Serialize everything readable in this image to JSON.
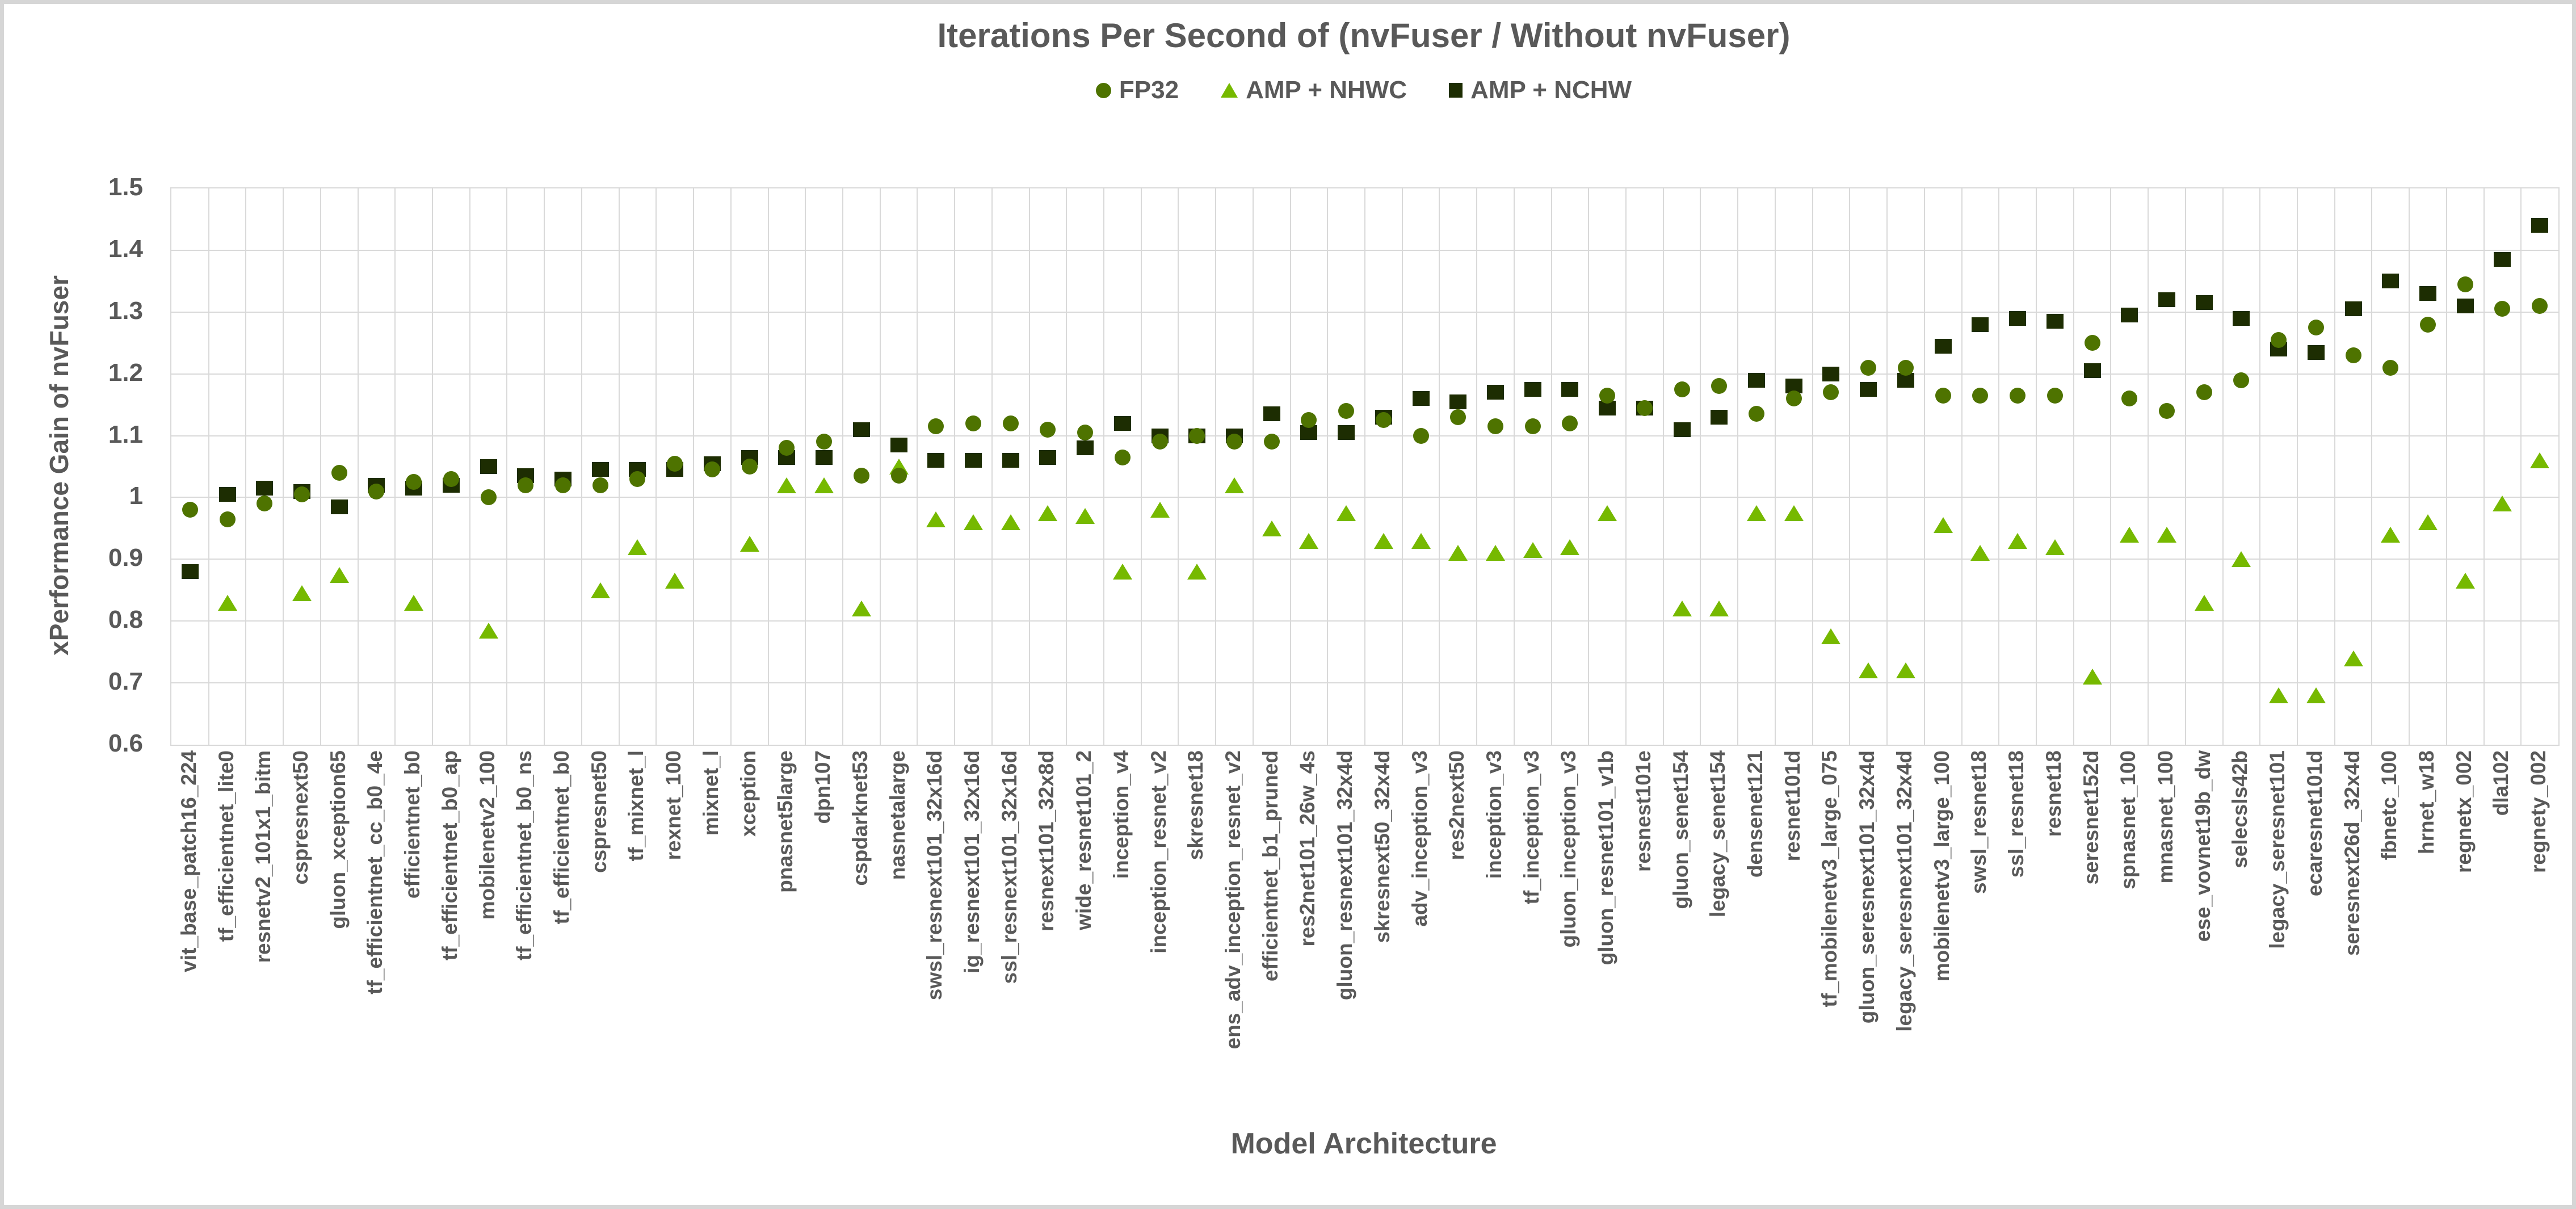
{
  "chart_data": {
    "type": "scatter",
    "title": "Iterations Per Second of (nvFuser / Without nvFuser)",
    "xlabel": "Model Architecture",
    "ylabel": "xPerformance Gain of nvFuser",
    "ylim": [
      0.6,
      1.5
    ],
    "ytick_labels": [
      "1.5",
      "1.4",
      "1.3",
      "1.2",
      "1.1",
      "1",
      "0.9",
      "0.8",
      "0.7",
      "0.6"
    ],
    "grid": true,
    "legend_position": "top-center",
    "grid_color": "#d9d9d9",
    "text_color": "#595959",
    "categories": [
      "vit_base_patch16_224",
      "tf_efficientnet_lite0",
      "resnetv2_101x1_bitm",
      "cspresnext50",
      "gluon_xception65",
      "tf_efficientnet_cc_b0_4e",
      "efficientnet_b0",
      "tf_efficientnet_b0_ap",
      "mobilenetv2_100",
      "tf_efficientnet_b0_ns",
      "tf_efficientnet_b0",
      "cspresnet50",
      "tf_mixnet_l",
      "rexnet_100",
      "mixnet_l",
      "xception",
      "pnasnet5large",
      "dpn107",
      "cspdarknet53",
      "nasnetalarge",
      "swsl_resnext101_32x16d",
      "ig_resnext101_32x16d",
      "ssl_resnext101_32x16d",
      "resnext101_32x8d",
      "wide_resnet101_2",
      "inception_v4",
      "inception_resnet_v2",
      "skresnet18",
      "ens_adv_inception_resnet_v2",
      "efficientnet_b1_pruned",
      "res2net101_26w_4s",
      "gluon_resnext101_32x4d",
      "skresnext50_32x4d",
      "adv_inception_v3",
      "res2next50",
      "inception_v3",
      "tf_inception_v3",
      "gluon_inception_v3",
      "gluon_resnet101_v1b",
      "resnest101e",
      "gluon_senet154",
      "legacy_senet154",
      "densenet121",
      "resnet101d",
      "tf_mobilenetv3_large_075",
      "gluon_seresnext101_32x4d",
      "legacy_seresnext101_32x4d",
      "mobilenetv3_large_100",
      "swsl_resnet18",
      "ssl_resnet18",
      "resnet18",
      "seresnet152d",
      "spnasnet_100",
      "mnasnet_100",
      "ese_vovnet19b_dw",
      "selecsls42b",
      "legacy_seresnet101",
      "ecaresnet101d",
      "seresnext26d_32x4d",
      "fbnetc_100",
      "hrnet_w18",
      "regnetx_002",
      "dla102",
      "regnety_002"
    ],
    "series": [
      {
        "name": "FP32",
        "marker": "circle",
        "color": "#4e7300",
        "values": [
          0.98,
          0.965,
          0.99,
          1.005,
          1.04,
          1.01,
          1.025,
          1.03,
          1.0,
          1.02,
          1.02,
          1.02,
          1.03,
          1.055,
          1.045,
          1.05,
          1.08,
          1.09,
          1.035,
          1.035,
          1.115,
          1.12,
          1.12,
          1.11,
          1.105,
          1.065,
          1.09,
          1.1,
          1.09,
          1.09,
          1.125,
          1.14,
          1.125,
          1.1,
          1.13,
          1.115,
          1.115,
          1.12,
          1.165,
          1.145,
          1.175,
          1.18,
          1.135,
          1.16,
          1.17,
          1.21,
          1.21,
          1.165,
          1.165,
          1.165,
          1.165,
          1.25,
          1.16,
          1.14,
          1.17,
          1.19,
          1.255,
          1.275,
          1.23,
          1.21,
          1.28,
          1.345,
          1.305,
          1.31
        ]
      },
      {
        "name": "AMP + NHWC",
        "marker": "triangle",
        "color": "#76b900",
        "values": [
          null,
          0.83,
          null,
          0.845,
          0.875,
          null,
          0.83,
          null,
          0.785,
          null,
          null,
          0.85,
          0.92,
          0.865,
          null,
          0.925,
          1.02,
          1.02,
          0.82,
          1.05,
          0.965,
          0.96,
          0.96,
          0.975,
          0.97,
          0.88,
          0.98,
          0.88,
          1.02,
          0.95,
          0.93,
          0.975,
          0.93,
          0.93,
          0.91,
          0.91,
          0.915,
          0.92,
          0.975,
          null,
          0.82,
          0.82,
          0.975,
          0.975,
          0.775,
          0.72,
          0.72,
          0.955,
          0.91,
          0.93,
          0.92,
          0.71,
          0.94,
          0.94,
          0.83,
          0.9,
          0.68,
          0.68,
          0.74,
          0.94,
          0.96,
          0.865,
          0.99,
          1.06
        ]
      },
      {
        "name": "AMP + NCHW",
        "marker": "square",
        "color": "#1d2d02",
        "values": [
          0.88,
          1.005,
          1.015,
          1.01,
          0.985,
          1.02,
          1.015,
          1.02,
          1.05,
          1.035,
          1.03,
          1.045,
          1.045,
          1.045,
          1.055,
          1.065,
          1.065,
          1.065,
          1.11,
          1.085,
          1.06,
          1.06,
          1.06,
          1.065,
          1.08,
          1.12,
          1.1,
          1.1,
          1.1,
          1.135,
          1.105,
          1.105,
          1.13,
          1.16,
          1.155,
          1.17,
          1.175,
          1.175,
          1.145,
          1.145,
          1.11,
          1.13,
          1.19,
          1.18,
          1.2,
          1.175,
          1.19,
          1.245,
          1.28,
          1.29,
          1.285,
          1.205,
          1.295,
          1.32,
          1.315,
          1.29,
          1.24,
          1.235,
          1.305,
          1.35,
          1.33,
          1.31,
          1.385,
          1.44
        ]
      }
    ]
  }
}
